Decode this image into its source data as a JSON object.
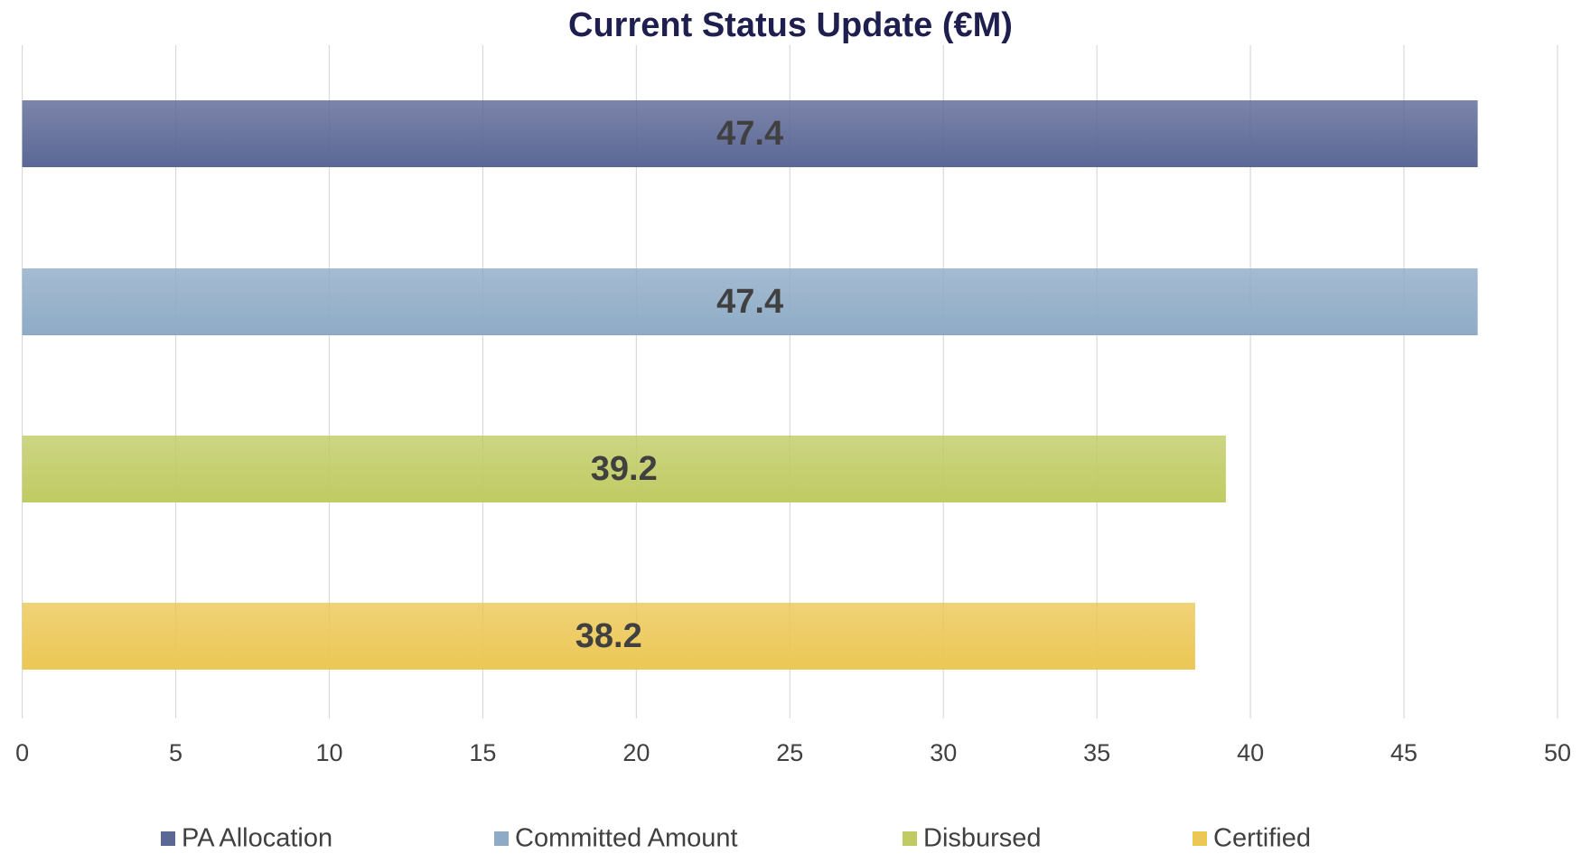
{
  "chart_data": {
    "type": "bar",
    "orientation": "horizontal",
    "title": "Current Status Update (€M)",
    "series": [
      {
        "name": "PA Allocation",
        "color": "#5b6795",
        "values": [
          47.4
        ]
      },
      {
        "name": "Committed Amount",
        "color": "#8eabc6",
        "values": [
          47.4
        ]
      },
      {
        "name": "Disbursed",
        "color": "#c0cb63",
        "values": [
          39.2
        ]
      },
      {
        "name": "Certified",
        "color": "#ecc755",
        "values": [
          38.2
        ]
      }
    ],
    "xlim": [
      0,
      50
    ],
    "xticks": [
      0,
      5,
      10,
      15,
      20,
      25,
      30,
      35,
      40,
      45,
      50
    ],
    "grid": true,
    "legend": "bottom"
  }
}
